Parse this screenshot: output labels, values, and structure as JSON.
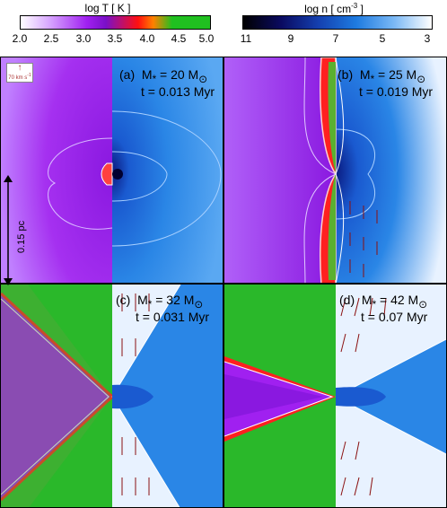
{
  "colorbars": {
    "temperature": {
      "title": "log T  [ K ]",
      "ticks": [
        "2.0",
        "2.5",
        "3.0",
        "3.5",
        "4.0",
        "4.5",
        "5.0"
      ]
    },
    "density": {
      "title": "log n  [ cm",
      "title_exp": "-3",
      "title_end": " ]",
      "ticks": [
        "11",
        "9",
        "7",
        "5",
        "3"
      ]
    }
  },
  "scale": {
    "label": "0.15 pc"
  },
  "velocity_key": {
    "label": "70 km s",
    "exp": "-1"
  },
  "panels": [
    {
      "tag": "(a)",
      "mass": "M",
      "sub": "*",
      "mass_value": " =  20 M",
      "time": "t = 0.013 Myr"
    },
    {
      "tag": "(b)",
      "mass": "M",
      "sub": "*",
      "mass_value": " =  25 M",
      "time": "t = 0.019 Myr"
    },
    {
      "tag": "(c)",
      "mass": "M",
      "sub": "*",
      "mass_value": " =  32 M",
      "time": "t = 0.031 Myr"
    },
    {
      "tag": "(d)",
      "mass": "M",
      "sub": "*",
      "mass_value": " =  42 M",
      "time": "t = 0.07 Myr"
    }
  ],
  "colors": {
    "temp_purple": "#a020f0",
    "temp_green": "#22c01c",
    "dens_blue": "#1e7be0",
    "dens_white": "#e8f2ff"
  }
}
